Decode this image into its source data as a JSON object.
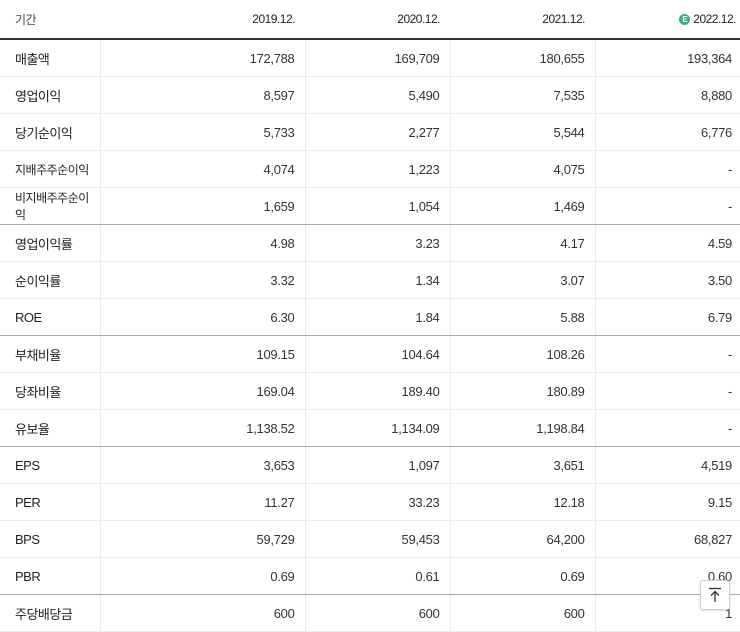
{
  "header": {
    "label": "기간",
    "periods": [
      "2019.12.",
      "2020.12.",
      "2021.12.",
      "2022.12."
    ],
    "estimate_badge": "E",
    "estimate_color": "#2fb57a"
  },
  "rows": [
    {
      "label": "매출액",
      "values": [
        "172,788",
        "169,709",
        "180,655",
        "193,364"
      ]
    },
    {
      "label": "영업이익",
      "values": [
        "8,597",
        "5,490",
        "7,535",
        "8,880"
      ]
    },
    {
      "label": "당기순이익",
      "values": [
        "5,733",
        "2,277",
        "5,544",
        "6,776"
      ]
    },
    {
      "label": "지배주주순이익",
      "values": [
        "4,074",
        "1,223",
        "4,075",
        "-"
      ]
    },
    {
      "label": "비지배주주순이익",
      "values": [
        "1,659",
        "1,054",
        "1,469",
        "-"
      ]
    },
    {
      "label": "영업이익률",
      "values": [
        "4.98",
        "3.23",
        "4.17",
        "4.59"
      ]
    },
    {
      "label": "순이익률",
      "values": [
        "3.32",
        "1.34",
        "3.07",
        "3.50"
      ]
    },
    {
      "label": "ROE",
      "values": [
        "6.30",
        "1.84",
        "5.88",
        "6.79"
      ]
    },
    {
      "label": "부채비율",
      "values": [
        "109.15",
        "104.64",
        "108.26",
        "-"
      ]
    },
    {
      "label": "당좌비율",
      "values": [
        "169.04",
        "189.40",
        "180.89",
        "-"
      ]
    },
    {
      "label": "유보율",
      "values": [
        "1,138.52",
        "1,134.09",
        "1,198.84",
        "-"
      ]
    },
    {
      "label": "EPS",
      "values": [
        "3,653",
        "1,097",
        "3,651",
        "4,519"
      ]
    },
    {
      "label": "PER",
      "values": [
        "11.27",
        "33.23",
        "12.18",
        "9.15"
      ]
    },
    {
      "label": "BPS",
      "values": [
        "59,729",
        "59,453",
        "64,200",
        "68,827"
      ]
    },
    {
      "label": "PBR",
      "values": [
        "0.69",
        "0.61",
        "0.69",
        "0.60"
      ]
    },
    {
      "label": "주당배당금",
      "values": [
        "600",
        "600",
        "600",
        "1"
      ]
    }
  ],
  "scroll_top_icon": "arrow-up-to-line-icon"
}
